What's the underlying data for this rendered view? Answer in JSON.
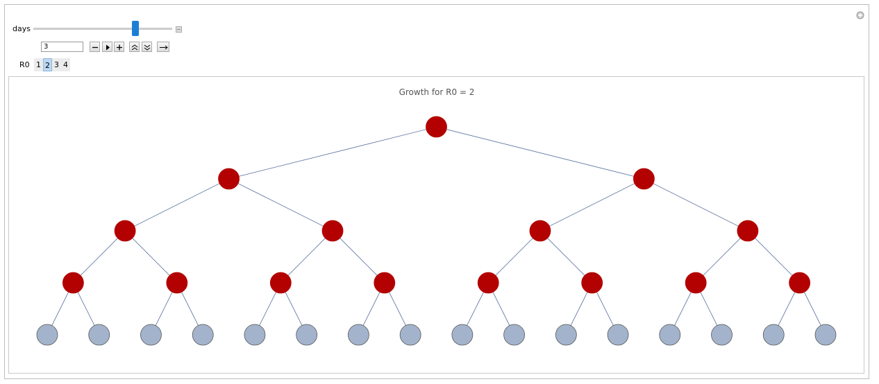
{
  "controls": {
    "days_label": "days",
    "days_value": "3",
    "r0_label": "R0",
    "r0_options": [
      "1",
      "2",
      "3",
      "4"
    ],
    "r0_selected": "2"
  },
  "plot": {
    "title": "Growth for R0 = 2"
  }
}
